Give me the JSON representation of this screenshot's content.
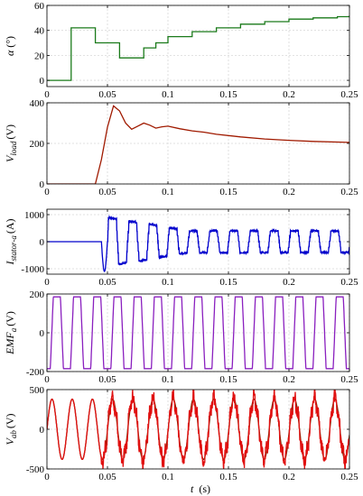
{
  "chart_data": [
    {
      "type": "line",
      "ylabel_main": "α",
      "ylabel_unit": "(°)",
      "xlim": [
        0,
        0.25
      ],
      "ylim": [
        -5,
        60
      ],
      "xticks": [
        "0",
        "0.05",
        "0.1",
        "0.15",
        "0.2",
        "0.25"
      ],
      "yticks": [
        0,
        20,
        40,
        60
      ],
      "grid": true,
      "series": [
        {
          "color": "#1a7a1a",
          "shape": "step",
          "x": [
            0,
            0.02,
            0.04,
            0.06,
            0.08,
            0.09,
            0.1,
            0.12,
            0.14,
            0.16,
            0.18,
            0.2,
            0.22,
            0.24,
            0.25
          ],
          "y": [
            0,
            42,
            30,
            18,
            26,
            30,
            35,
            39,
            42,
            45,
            47,
            49,
            50,
            51,
            52
          ]
        }
      ]
    },
    {
      "type": "line",
      "ylabel_main": "V",
      "ylabel_sub": "load",
      "ylabel_unit": "(V)",
      "xlim": [
        0,
        0.25
      ],
      "ylim": [
        0,
        400
      ],
      "xticks": [
        "0",
        "0.05",
        "0.1",
        "0.15",
        "0.2",
        "0.25"
      ],
      "yticks": [
        0,
        200,
        400
      ],
      "grid": true,
      "series": [
        {
          "color": "#a01a00",
          "shape": "curve",
          "x": [
            0,
            0.04,
            0.045,
            0.05,
            0.055,
            0.06,
            0.065,
            0.07,
            0.075,
            0.08,
            0.085,
            0.09,
            0.095,
            0.1,
            0.11,
            0.12,
            0.13,
            0.14,
            0.16,
            0.18,
            0.2,
            0.22,
            0.25
          ],
          "y": [
            0,
            0,
            120,
            280,
            385,
            360,
            300,
            270,
            285,
            300,
            290,
            275,
            282,
            285,
            272,
            262,
            255,
            245,
            232,
            222,
            215,
            210,
            205
          ]
        }
      ]
    },
    {
      "type": "line",
      "ylabel_main": "I",
      "ylabel_sub": "stator-a",
      "ylabel_unit": "(A)",
      "xlim": [
        0,
        0.25
      ],
      "ylim": [
        -1200,
        1200
      ],
      "xticks": [
        "0",
        "0.05",
        "0.1",
        "0.15",
        "0.2",
        "0.25"
      ],
      "yticks": [
        -1000,
        0,
        1000
      ],
      "grid": true,
      "series": [
        {
          "color": "#0000cc",
          "shape": "current",
          "period": 0.0167,
          "start": 0.05,
          "amp_start": 900,
          "amp_end": 400
        }
      ]
    },
    {
      "type": "line",
      "ylabel_main": "EMF",
      "ylabel_sub": "a",
      "ylabel_unit": "(V)",
      "xlim": [
        0,
        0.25
      ],
      "ylim": [
        -200,
        200
      ],
      "xticks": [
        "0",
        "0.05",
        "0.1",
        "0.15",
        "0.2",
        "0.25"
      ],
      "yticks": [
        -200,
        0,
        200
      ],
      "grid": true,
      "series": [
        {
          "color": "#8a1fbf",
          "shape": "trapezoid",
          "period": 0.0167,
          "amp": 185,
          "offset": 0.004
        }
      ]
    },
    {
      "type": "line",
      "ylabel_main": "V",
      "ylabel_sub": "ab",
      "ylabel_unit": "(V)",
      "xlim": [
        0,
        0.25
      ],
      "ylim": [
        -500,
        500
      ],
      "xticks": [
        "0",
        "0.05",
        "0.1",
        "0.15",
        "0.2",
        "0.25"
      ],
      "yticks": [
        -500,
        0,
        500
      ],
      "grid": true,
      "series": [
        {
          "color": "#7a2a00",
          "shape": "sine",
          "period": 0.0167,
          "amp": 380,
          "offset": 0
        },
        {
          "color": "#e01010",
          "shape": "noisysine",
          "period": 0.0167,
          "amp": 380,
          "offset": 0,
          "start": 0.045
        }
      ]
    }
  ],
  "xlabel_main": "t",
  "xlabel_unit": "(s)"
}
